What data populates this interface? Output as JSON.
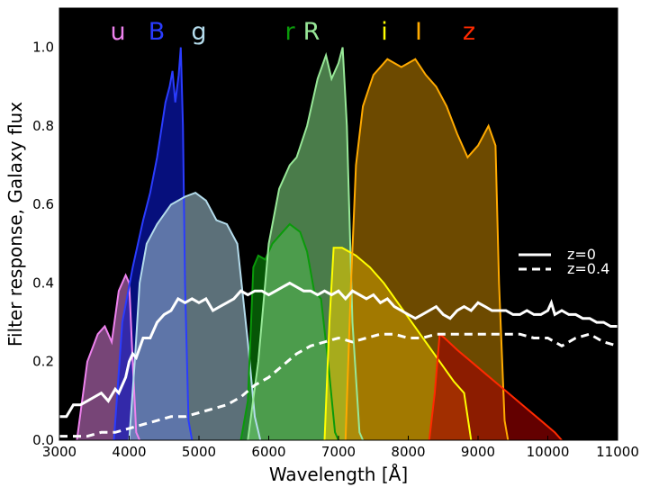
{
  "chart_data": {
    "type": "area",
    "xlabel": "Wavelength [Å]",
    "ylabel": "Filter response, Galaxy flux",
    "xlim": [
      3000,
      11000
    ],
    "ylim": [
      0.0,
      1.1
    ],
    "x_ticks": [
      "3000",
      "4000",
      "5000",
      "6000",
      "7000",
      "8000",
      "9000",
      "10000",
      "11000"
    ],
    "x_tick_values": [
      3000,
      4000,
      5000,
      6000,
      7000,
      8000,
      9000,
      10000,
      11000
    ],
    "y_ticks": [
      "0.0",
      "0.2",
      "0.4",
      "0.6",
      "0.8",
      "1.0"
    ],
    "y_tick_values": [
      0.0,
      0.2,
      0.4,
      0.6,
      0.8,
      1.0
    ],
    "background": "#000000",
    "legend_position": "right",
    "filters": [
      {
        "label": "u",
        "line_color": "#ee82ee",
        "fill_color": "#c070c0",
        "points": [
          [
            3250,
            0
          ],
          [
            3400,
            0.2
          ],
          [
            3550,
            0.27
          ],
          [
            3650,
            0.29
          ],
          [
            3750,
            0.25
          ],
          [
            3850,
            0.38
          ],
          [
            3950,
            0.42
          ],
          [
            4000,
            0.4
          ],
          [
            4050,
            0.2
          ],
          [
            4100,
            0.02
          ],
          [
            4150,
            0
          ]
        ]
      },
      {
        "label": "B",
        "line_color": "#2a3cff",
        "fill_color": "#0a18c8",
        "points": [
          [
            3780,
            0
          ],
          [
            3830,
            0.12
          ],
          [
            3900,
            0.3
          ],
          [
            4050,
            0.44
          ],
          [
            4200,
            0.56
          ],
          [
            4300,
            0.63
          ],
          [
            4400,
            0.72
          ],
          [
            4520,
            0.86
          ],
          [
            4580,
            0.9
          ],
          [
            4620,
            0.94
          ],
          [
            4660,
            0.86
          ],
          [
            4710,
            0.93
          ],
          [
            4740,
            1.0
          ],
          [
            4770,
            0.8
          ],
          [
            4800,
            0.4
          ],
          [
            4850,
            0.05
          ],
          [
            4900,
            0
          ]
        ]
      },
      {
        "label": "g",
        "line_color": "#b4dcec",
        "fill_color": "#94b4c4",
        "points": [
          [
            4000,
            0
          ],
          [
            4080,
            0.2
          ],
          [
            4150,
            0.4
          ],
          [
            4250,
            0.5
          ],
          [
            4400,
            0.55
          ],
          [
            4600,
            0.6
          ],
          [
            4800,
            0.62
          ],
          [
            4950,
            0.63
          ],
          [
            5100,
            0.61
          ],
          [
            5250,
            0.56
          ],
          [
            5400,
            0.55
          ],
          [
            5550,
            0.5
          ],
          [
            5700,
            0.25
          ],
          [
            5800,
            0.06
          ],
          [
            5880,
            0
          ]
        ]
      },
      {
        "label": "r",
        "line_color": "#0a9a0a",
        "fill_color": "#0a8a0a",
        "points": [
          [
            5600,
            0
          ],
          [
            5700,
            0.1
          ],
          [
            5780,
            0.44
          ],
          [
            5850,
            0.47
          ],
          [
            5950,
            0.46
          ],
          [
            6050,
            0.5
          ],
          [
            6200,
            0.53
          ],
          [
            6300,
            0.55
          ],
          [
            6450,
            0.53
          ],
          [
            6550,
            0.48
          ],
          [
            6650,
            0.38
          ],
          [
            6750,
            0.36
          ],
          [
            6850,
            0.2
          ],
          [
            6950,
            0.02
          ],
          [
            7000,
            0
          ]
        ]
      },
      {
        "label": "R",
        "line_color": "#98e898",
        "fill_color": "#78c878",
        "points": [
          [
            5700,
            0
          ],
          [
            5850,
            0.2
          ],
          [
            6000,
            0.5
          ],
          [
            6150,
            0.64
          ],
          [
            6300,
            0.7
          ],
          [
            6400,
            0.72
          ],
          [
            6550,
            0.8
          ],
          [
            6700,
            0.92
          ],
          [
            6820,
            0.98
          ],
          [
            6900,
            0.92
          ],
          [
            7000,
            0.96
          ],
          [
            7060,
            1.0
          ],
          [
            7120,
            0.8
          ],
          [
            7200,
            0.3
          ],
          [
            7300,
            0.02
          ],
          [
            7350,
            0
          ]
        ]
      },
      {
        "label": "i",
        "line_color": "#ffff00",
        "fill_color": "#e0c800",
        "points": [
          [
            6800,
            0
          ],
          [
            6870,
            0.3
          ],
          [
            6930,
            0.49
          ],
          [
            7050,
            0.49
          ],
          [
            7250,
            0.47
          ],
          [
            7450,
            0.44
          ],
          [
            7650,
            0.4
          ],
          [
            7850,
            0.35
          ],
          [
            8050,
            0.3
          ],
          [
            8250,
            0.25
          ],
          [
            8450,
            0.2
          ],
          [
            8650,
            0.15
          ],
          [
            8800,
            0.12
          ],
          [
            8900,
            0
          ]
        ]
      },
      {
        "label": "I",
        "line_color": "#ffaa00",
        "fill_color": "#b07800",
        "points": [
          [
            7100,
            0
          ],
          [
            7180,
            0.4
          ],
          [
            7250,
            0.7
          ],
          [
            7350,
            0.85
          ],
          [
            7500,
            0.93
          ],
          [
            7700,
            0.97
          ],
          [
            7900,
            0.95
          ],
          [
            8100,
            0.97
          ],
          [
            8250,
            0.93
          ],
          [
            8400,
            0.9
          ],
          [
            8550,
            0.85
          ],
          [
            8700,
            0.78
          ],
          [
            8850,
            0.72
          ],
          [
            9000,
            0.75
          ],
          [
            9150,
            0.8
          ],
          [
            9250,
            0.75
          ],
          [
            9300,
            0.4
          ],
          [
            9380,
            0.05
          ],
          [
            9430,
            0
          ]
        ]
      },
      {
        "label": "z",
        "line_color": "#ff2a00",
        "fill_color": "#a00000",
        "points": [
          [
            8300,
            0
          ],
          [
            8380,
            0.12
          ],
          [
            8450,
            0.27
          ],
          [
            8520,
            0.26
          ],
          [
            8700,
            0.23
          ],
          [
            8900,
            0.2
          ],
          [
            9100,
            0.17
          ],
          [
            9300,
            0.14
          ],
          [
            9500,
            0.11
          ],
          [
            9700,
            0.08
          ],
          [
            9900,
            0.05
          ],
          [
            10100,
            0.02
          ],
          [
            10200,
            0
          ]
        ]
      }
    ],
    "series": [
      {
        "name": "z=0",
        "line_color": "#ffffff",
        "dash": false,
        "points": [
          [
            3000,
            0.06
          ],
          [
            3100,
            0.06
          ],
          [
            3200,
            0.09
          ],
          [
            3300,
            0.09
          ],
          [
            3400,
            0.1
          ],
          [
            3500,
            0.11
          ],
          [
            3600,
            0.12
          ],
          [
            3700,
            0.1
          ],
          [
            3800,
            0.13
          ],
          [
            3850,
            0.12
          ],
          [
            3950,
            0.16
          ],
          [
            4000,
            0.2
          ],
          [
            4050,
            0.22
          ],
          [
            4100,
            0.21
          ],
          [
            4200,
            0.26
          ],
          [
            4300,
            0.26
          ],
          [
            4400,
            0.3
          ],
          [
            4500,
            0.32
          ],
          [
            4600,
            0.33
          ],
          [
            4700,
            0.36
          ],
          [
            4800,
            0.35
          ],
          [
            4900,
            0.36
          ],
          [
            5000,
            0.35
          ],
          [
            5100,
            0.36
          ],
          [
            5200,
            0.33
          ],
          [
            5300,
            0.34
          ],
          [
            5400,
            0.35
          ],
          [
            5500,
            0.36
          ],
          [
            5600,
            0.38
          ],
          [
            5700,
            0.37
          ],
          [
            5800,
            0.38
          ],
          [
            5900,
            0.38
          ],
          [
            6000,
            0.37
          ],
          [
            6100,
            0.38
          ],
          [
            6200,
            0.39
          ],
          [
            6300,
            0.4
          ],
          [
            6400,
            0.39
          ],
          [
            6500,
            0.38
          ],
          [
            6600,
            0.38
          ],
          [
            6700,
            0.37
          ],
          [
            6800,
            0.38
          ],
          [
            6900,
            0.37
          ],
          [
            7000,
            0.38
          ],
          [
            7100,
            0.36
          ],
          [
            7200,
            0.38
          ],
          [
            7300,
            0.37
          ],
          [
            7400,
            0.36
          ],
          [
            7500,
            0.37
          ],
          [
            7600,
            0.35
          ],
          [
            7700,
            0.36
          ],
          [
            7800,
            0.34
          ],
          [
            7900,
            0.33
          ],
          [
            8000,
            0.32
          ],
          [
            8100,
            0.31
          ],
          [
            8200,
            0.32
          ],
          [
            8300,
            0.33
          ],
          [
            8400,
            0.34
          ],
          [
            8500,
            0.32
          ],
          [
            8600,
            0.31
          ],
          [
            8700,
            0.33
          ],
          [
            8800,
            0.34
          ],
          [
            8900,
            0.33
          ],
          [
            9000,
            0.35
          ],
          [
            9100,
            0.34
          ],
          [
            9200,
            0.33
          ],
          [
            9300,
            0.33
          ],
          [
            9400,
            0.33
          ],
          [
            9500,
            0.32
          ],
          [
            9600,
            0.32
          ],
          [
            9700,
            0.33
          ],
          [
            9800,
            0.32
          ],
          [
            9900,
            0.32
          ],
          [
            10000,
            0.33
          ],
          [
            10050,
            0.35
          ],
          [
            10100,
            0.32
          ],
          [
            10200,
            0.33
          ],
          [
            10300,
            0.32
          ],
          [
            10400,
            0.32
          ],
          [
            10500,
            0.31
          ],
          [
            10600,
            0.31
          ],
          [
            10700,
            0.3
          ],
          [
            10800,
            0.3
          ],
          [
            10900,
            0.29
          ],
          [
            11000,
            0.29
          ]
        ]
      },
      {
        "name": "z=0.4",
        "line_color": "#ffffff",
        "dash": true,
        "points": [
          [
            3000,
            0.01
          ],
          [
            3200,
            0.01
          ],
          [
            3400,
            0.01
          ],
          [
            3600,
            0.02
          ],
          [
            3800,
            0.02
          ],
          [
            4000,
            0.03
          ],
          [
            4200,
            0.04
          ],
          [
            4400,
            0.05
          ],
          [
            4600,
            0.06
          ],
          [
            4800,
            0.06
          ],
          [
            5000,
            0.07
          ],
          [
            5200,
            0.08
          ],
          [
            5400,
            0.09
          ],
          [
            5600,
            0.11
          ],
          [
            5800,
            0.14
          ],
          [
            6000,
            0.16
          ],
          [
            6200,
            0.19
          ],
          [
            6400,
            0.22
          ],
          [
            6600,
            0.24
          ],
          [
            6800,
            0.25
          ],
          [
            7000,
            0.26
          ],
          [
            7200,
            0.25
          ],
          [
            7400,
            0.26
          ],
          [
            7600,
            0.27
          ],
          [
            7800,
            0.27
          ],
          [
            8000,
            0.26
          ],
          [
            8200,
            0.26
          ],
          [
            8400,
            0.27
          ],
          [
            8600,
            0.27
          ],
          [
            8800,
            0.27
          ],
          [
            9000,
            0.27
          ],
          [
            9200,
            0.27
          ],
          [
            9400,
            0.27
          ],
          [
            9600,
            0.27
          ],
          [
            9800,
            0.26
          ],
          [
            10000,
            0.26
          ],
          [
            10100,
            0.25
          ],
          [
            10200,
            0.24
          ],
          [
            10400,
            0.26
          ],
          [
            10600,
            0.27
          ],
          [
            10800,
            0.25
          ],
          [
            11000,
            0.24
          ]
        ]
      }
    ]
  }
}
